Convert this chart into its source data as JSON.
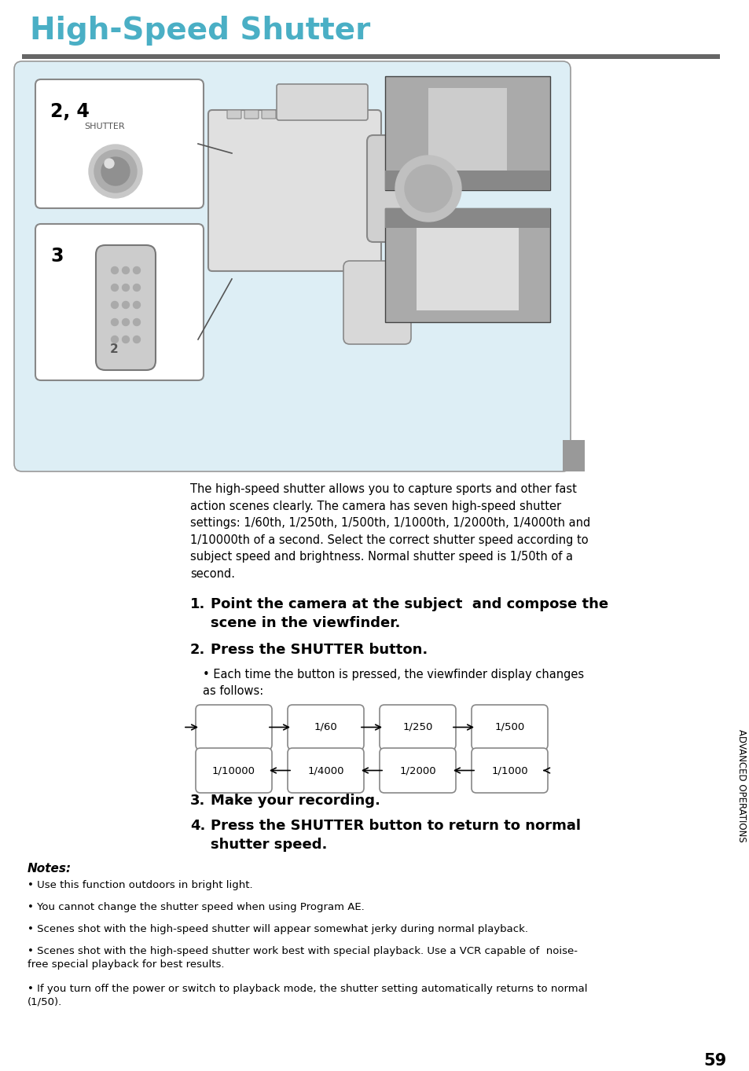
{
  "title": "High-Speed Shutter",
  "title_color": "#4aafc5",
  "title_fontsize": 28,
  "bg_color": "#ffffff",
  "page_number": "59",
  "sidebar_text": "ADVANCED OPERATIONS",
  "sidebar_bg": "#aaaaaa",
  "panel_bg": "#ddeef5",
  "panel_edge": "#aaccdd",
  "body_text_intro": "The high-speed shutter allows you to capture sports and other fast\naction scenes clearly. The camera has seven high-speed shutter\nsettings: 1/60th, 1/250th, 1/500th, 1/1000th, 1/2000th, 1/4000th and\n1/10000th of a second. Select the correct shutter speed according to\nsubject speed and brightness. Normal shutter speed is 1/50th of a\nsecond.",
  "step1_num": "1.",
  "step1_bold": "Point the camera at the subject  and compose the\nscene in the viewfinder.",
  "step2_num": "2.",
  "step2_bold": "Press the SHUTTER button.",
  "step2_bullet": "Each time the button is pressed, the viewfinder display changes\nas follows:",
  "step3_num": "3.",
  "step3_bold": "Make your recording.",
  "step4_num": "4.",
  "step4_bold": "Press the SHUTTER button to return to normal\nshutter speed.",
  "notes_title": "Notes:",
  "notes": [
    "Use this function outdoors in bright light.",
    "You cannot change the shutter speed when using Program AE.",
    "Scenes shot with the high-speed shutter will appear somewhat jerky during normal playback.",
    "Scenes shot with the high-speed shutter work best with special playback. Use a VCR capable of  noise-\nfree special playback for best results.",
    "If you turn off the power or switch to playback mode, the shutter setting automatically returns to normal\n(1/50)."
  ],
  "shutter_sequence_top": [
    "",
    "1/60",
    "1/250",
    "1/500"
  ],
  "shutter_sequence_bottom": [
    "1/10000",
    "1/4000",
    "1/2000",
    "1/1000"
  ]
}
